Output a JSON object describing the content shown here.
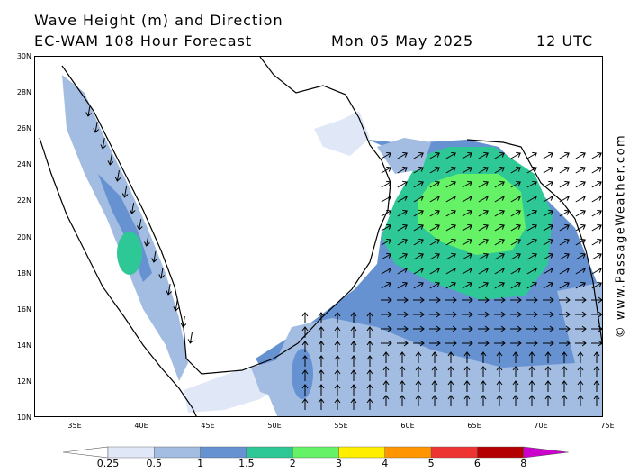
{
  "header": {
    "title": "Wave Height (m) and Direction",
    "model": "EC-WAM 108 Hour Forecast",
    "date": "Mon 05 May 2025",
    "time": "12 UTC"
  },
  "credit": "© www.PassageWeather.com",
  "axes": {
    "lat_labels": [
      "30N",
      "28N",
      "26N",
      "24N",
      "22N",
      "20N",
      "18N",
      "16N",
      "14N",
      "12N",
      "10N"
    ],
    "lon_labels": [
      "35E",
      "40E",
      "45E",
      "50E",
      "55E",
      "60E",
      "65E",
      "70E",
      "75E"
    ]
  },
  "legend": {
    "ticks": [
      "0.25",
      "0.5",
      "1",
      "1.5",
      "2",
      "3",
      "4",
      "5",
      "6",
      "8"
    ],
    "colors": [
      "#e0e8f8",
      "#a3bde2",
      "#6692d2",
      "#2ec796",
      "#66f266",
      "#ffee00",
      "#ff9500",
      "#ee3333",
      "#b40000",
      "#cc00cc"
    ]
  }
}
